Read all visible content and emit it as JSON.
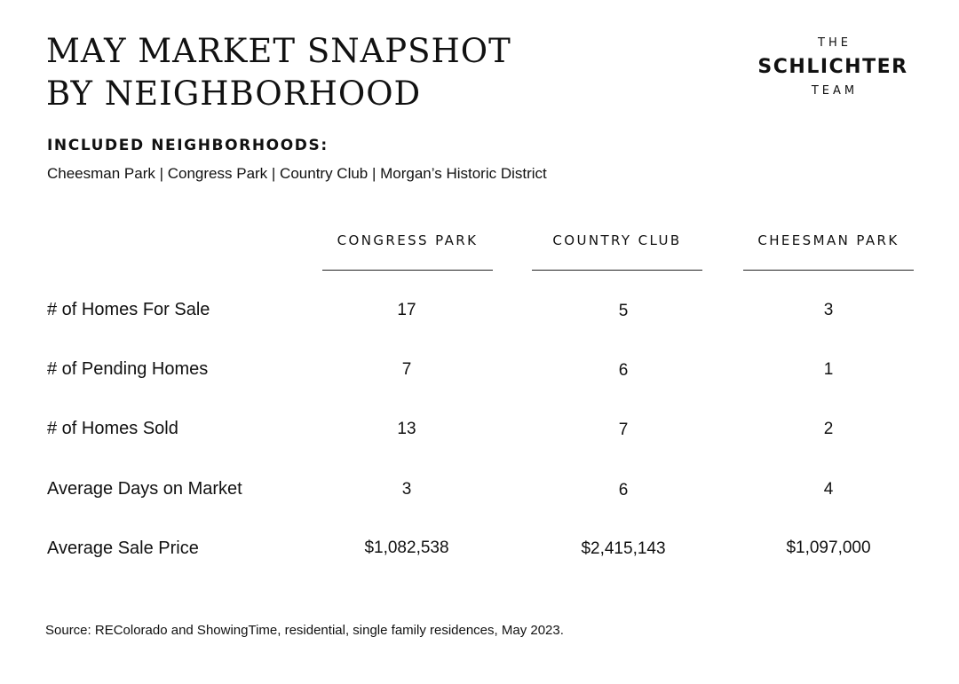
{
  "title": {
    "line1": "MAY MARKET SNAPSHOT",
    "line2": "BY NEIGHBORHOOD"
  },
  "logo": {
    "the": "THE",
    "name": "SCHLICHTER",
    "team": "TEAM"
  },
  "included": {
    "heading": "INCLUDED NEIGHBORHOODS:",
    "list": "Cheesman Park | Congress Park | Country Club | Morgan’s Historic District"
  },
  "table": {
    "columns": [
      "CONGRESS PARK",
      "COUNTRY CLUB",
      "CHEESMAN PARK"
    ],
    "rows": [
      {
        "label": "# of Homes For Sale",
        "values": [
          "17",
          "5",
          "3"
        ]
      },
      {
        "label": "# of Pending Homes",
        "values": [
          "7",
          "6",
          "1"
        ]
      },
      {
        "label": "# of Homes Sold",
        "values": [
          "13",
          "7",
          "2"
        ]
      },
      {
        "label": "Average Days on Market",
        "values": [
          "3",
          "6",
          "4"
        ]
      },
      {
        "label": "Average Sale Price",
        "values": [
          "$1,082,538",
          "$2,415,143",
          "$1,097,000"
        ]
      }
    ]
  },
  "source": "Source: REColorado and ShowingTime, residential, single family residences, May 2023."
}
